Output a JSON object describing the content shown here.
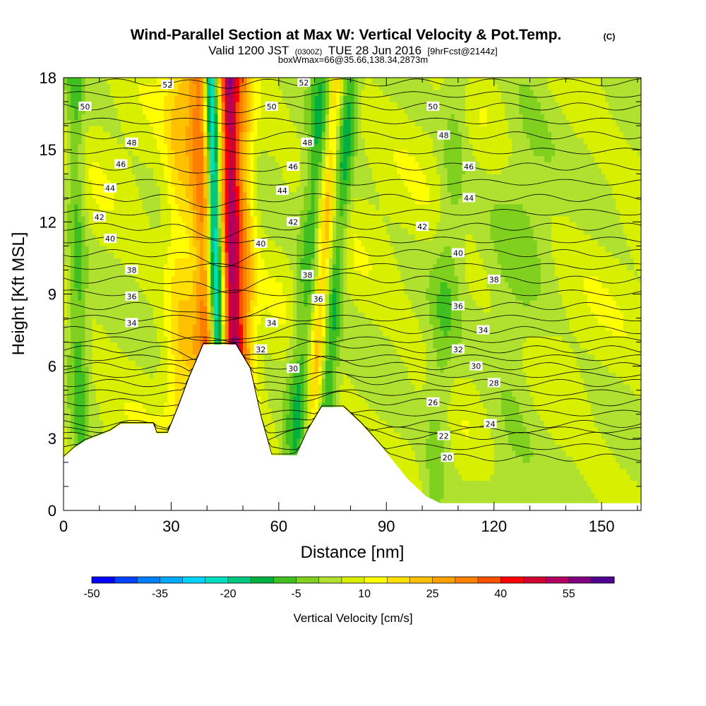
{
  "header": {
    "title": "Wind-Parallel Section at Max W: Vertical Velocity & Pot.Temp.",
    "copyright": "(C)",
    "valid_prefix": "Valid 1200 JST",
    "valid_utc": "(0300Z)",
    "valid_date": "TUE 28 Jun 2016",
    "forecast": "[9hrFcst@2144z]",
    "box_info": "boxWmax=66@35.66,138.34,2873m"
  },
  "chart_data": {
    "type": "heatmap",
    "xlabel": "Distance [nm]",
    "ylabel": "Height [Kft MSL]",
    "xlim": [
      0,
      161
    ],
    "ylim": [
      0,
      18
    ],
    "x_ticks": [
      0,
      30,
      60,
      90,
      120,
      150
    ],
    "y_ticks": [
      0,
      3,
      6,
      9,
      12,
      15,
      18
    ],
    "colorbar": {
      "title": "Vertical Velocity [cm/s]",
      "tick_labels": [
        "-50",
        "-35",
        "-20",
        "-5",
        "10",
        "25",
        "40",
        "55"
      ],
      "tick_values": [
        -50,
        -35,
        -20,
        -5,
        10,
        25,
        40,
        55
      ],
      "levels": [
        -50,
        -45,
        -40,
        -35,
        -30,
        -25,
        -20,
        -15,
        -10,
        -5,
        0,
        5,
        10,
        15,
        20,
        25,
        30,
        35,
        40,
        45,
        50,
        55,
        60
      ],
      "colors": [
        "#0000ff",
        "#0040ff",
        "#0080ff",
        "#00aaff",
        "#00d4ff",
        "#00e0c0",
        "#00c880",
        "#00b040",
        "#40c020",
        "#80d020",
        "#b0e030",
        "#d8f000",
        "#ffff00",
        "#ffe000",
        "#ffc000",
        "#ffa000",
        "#ff8000",
        "#ff5000",
        "#ff0000",
        "#d00030",
        "#b00060",
        "#800080",
        "#500090"
      ]
    },
    "theta_contours": [
      {
        "label": "20",
        "value": 20,
        "label_x": 107,
        "label_y": 2.2
      },
      {
        "label": "22",
        "value": 22,
        "label_x": 106,
        "label_y": 3.1
      },
      {
        "label": "24",
        "value": 24,
        "label_x": 119,
        "label_y": 3.6
      },
      {
        "label": "26",
        "value": 26,
        "label_x": 103,
        "label_y": 4.5
      },
      {
        "label": "28",
        "value": 28,
        "label_x": 120,
        "label_y": 5.3
      },
      {
        "label": "30",
        "value": 30,
        "label_x": 115,
        "label_y": 6.0
      },
      {
        "label": "32",
        "value": 32,
        "label_x": 110,
        "label_y": 6.7
      },
      {
        "label": "34",
        "value": 34,
        "label_x": 117,
        "label_y": 7.5
      },
      {
        "label": "36",
        "value": 36,
        "label_x": 110,
        "label_y": 8.5
      },
      {
        "label": "38",
        "value": 38,
        "label_x": 120,
        "label_y": 9.6
      },
      {
        "label": "40",
        "value": 40,
        "label_x": 110,
        "label_y": 10.7
      },
      {
        "label": "42",
        "value": 42,
        "label_x": 100,
        "label_y": 11.8
      },
      {
        "label": "44",
        "value": 44,
        "label_x": 113,
        "label_y": 13.0
      },
      {
        "label": "46",
        "value": 46,
        "label_x": 113,
        "label_y": 14.3
      },
      {
        "label": "48",
        "value": 48,
        "label_x": 106,
        "label_y": 15.6
      },
      {
        "label": "50",
        "value": 50,
        "label_x": 103,
        "label_y": 16.8
      },
      {
        "label": "52",
        "value": 52,
        "label_x": 67,
        "label_y": 17.8
      }
    ],
    "extra_contour_labels": [
      {
        "label": "52",
        "x": 29,
        "y": 17.7
      },
      {
        "label": "50",
        "x": 6,
        "y": 16.8
      },
      {
        "label": "48",
        "x": 19,
        "y": 15.3
      },
      {
        "label": "46",
        "x": 16,
        "y": 14.4
      },
      {
        "label": "44",
        "x": 13,
        "y": 13.4
      },
      {
        "label": "42",
        "x": 10,
        "y": 12.2
      },
      {
        "label": "40",
        "x": 13,
        "y": 11.3
      },
      {
        "label": "38",
        "x": 19,
        "y": 10.0
      },
      {
        "label": "36",
        "x": 19,
        "y": 8.9
      },
      {
        "label": "34",
        "x": 19,
        "y": 7.8
      },
      {
        "label": "50",
        "x": 58,
        "y": 16.8
      },
      {
        "label": "48",
        "x": 68,
        "y": 15.3
      },
      {
        "label": "46",
        "x": 64,
        "y": 14.3
      },
      {
        "label": "44",
        "x": 61,
        "y": 13.3
      },
      {
        "label": "42",
        "x": 64,
        "y": 12.0
      },
      {
        "label": "40",
        "x": 55,
        "y": 11.1
      },
      {
        "label": "38",
        "x": 68,
        "y": 9.8
      },
      {
        "label": "36",
        "x": 71,
        "y": 8.8
      },
      {
        "label": "34",
        "x": 58,
        "y": 7.8
      },
      {
        "label": "32",
        "x": 55,
        "y": 6.7
      },
      {
        "label": "30",
        "x": 64,
        "y": 5.9
      }
    ],
    "terrain": [
      [
        0,
        2.2
      ],
      [
        3,
        2.6
      ],
      [
        6,
        2.9
      ],
      [
        13,
        3.3
      ],
      [
        16,
        3.6
      ],
      [
        25,
        3.6
      ],
      [
        26,
        3.2
      ],
      [
        29,
        3.2
      ],
      [
        32,
        4.3
      ],
      [
        35,
        5.5
      ],
      [
        39,
        6.9
      ],
      [
        48,
        6.9
      ],
      [
        52,
        5.9
      ],
      [
        55,
        3.9
      ],
      [
        58,
        2.3
      ],
      [
        65,
        2.3
      ],
      [
        68,
        3.3
      ],
      [
        72,
        4.3
      ],
      [
        78,
        4.3
      ],
      [
        83,
        3.6
      ],
      [
        89,
        2.6
      ],
      [
        96,
        1.3
      ],
      [
        101,
        0.6
      ],
      [
        105,
        0.3
      ],
      [
        161,
        0.3
      ]
    ],
    "vv_field": {
      "background": 6,
      "bands": [
        {
          "x_center": 41,
          "x_top_center": 38,
          "width": 3.5,
          "value": 28
        },
        {
          "x_center": 44,
          "x_top_center": 41,
          "width": 1.8,
          "value": -40
        },
        {
          "x_center": 48,
          "x_top_center": 46,
          "width": 2.6,
          "value": 45
        },
        {
          "x_center": 51,
          "x_top_center": 50,
          "width": 3.0,
          "value": 20
        },
        {
          "x_center": 63,
          "x_top_center": 72,
          "width": 3.0,
          "value": -12
        },
        {
          "x_center": 68,
          "x_top_center": 76,
          "width": 2.0,
          "value": 18
        },
        {
          "x_center": 71,
          "x_top_center": 80,
          "width": 2.5,
          "value": -14
        },
        {
          "x_center": 5,
          "x_top_center": 3,
          "width": 2.5,
          "value": -10
        },
        {
          "x_center": 33,
          "x_top_center": 32,
          "width": 4.0,
          "value": 14
        },
        {
          "x_center": 103,
          "x_top_center": 110,
          "width": 4.0,
          "value": -6
        },
        {
          "x_center": 123,
          "x_top_center": 130,
          "width": 8.0,
          "value": -4
        }
      ]
    }
  }
}
